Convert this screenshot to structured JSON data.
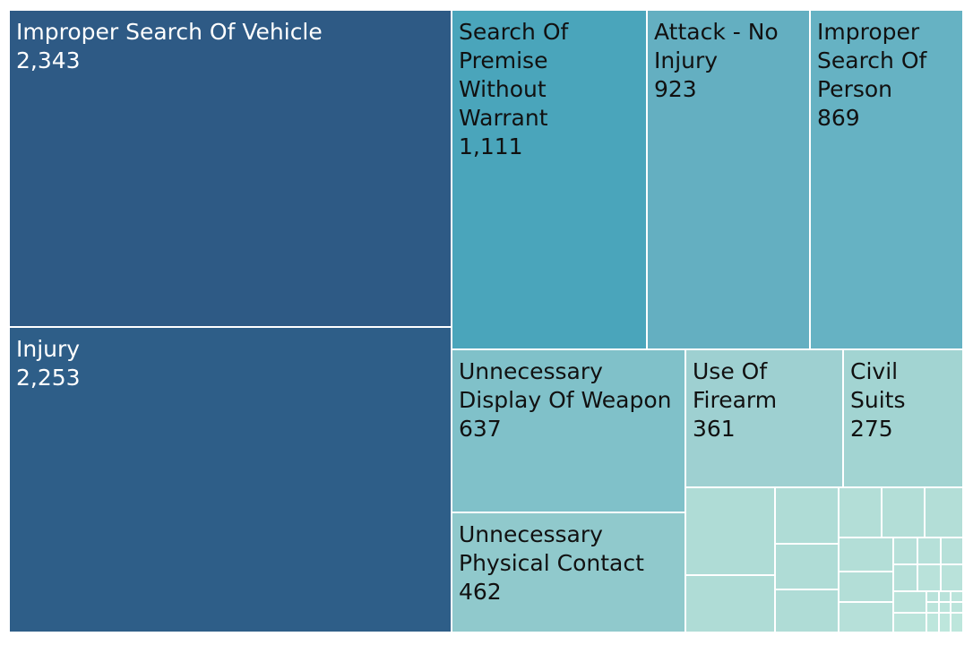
{
  "chart_data": {
    "type": "treemap",
    "title": "",
    "items": [
      {
        "label": "Improper Search Of Vehicle",
        "value": 2343,
        "value_text": "2,343",
        "color": "#2e5a85"
      },
      {
        "label": "Injury",
        "value": 2253,
        "value_text": "2,253",
        "color": "#2e5e88"
      },
      {
        "label": "Search Of Premise Without Warrant",
        "value": 1111,
        "value_text": "1,111",
        "color": "#4aa5bb"
      },
      {
        "label": "Attack - No Injury",
        "value": 923,
        "value_text": "923",
        "color": "#64afc1"
      },
      {
        "label": "Improper Search Of Person",
        "value": 869,
        "value_text": "869",
        "color": "#66b2c3"
      },
      {
        "label": "Unnecessary Display Of Weapon",
        "value": 637,
        "value_text": "637",
        "color": "#80c1c9"
      },
      {
        "label": "Unnecessary Physical Contact",
        "value": 462,
        "value_text": "462",
        "color": "#90c9cc"
      },
      {
        "label": "Use Of Firearm",
        "value": 361,
        "value_text": "361",
        "color": "#9ed0d1"
      },
      {
        "label": "Civil Suits",
        "value": 275,
        "value_text": "275",
        "color": "#a2d4d2"
      }
    ],
    "small_unlabeled_tiles": 28,
    "color_scale": {
      "dark": "#2e5a85",
      "light": "#bde6dc"
    }
  }
}
